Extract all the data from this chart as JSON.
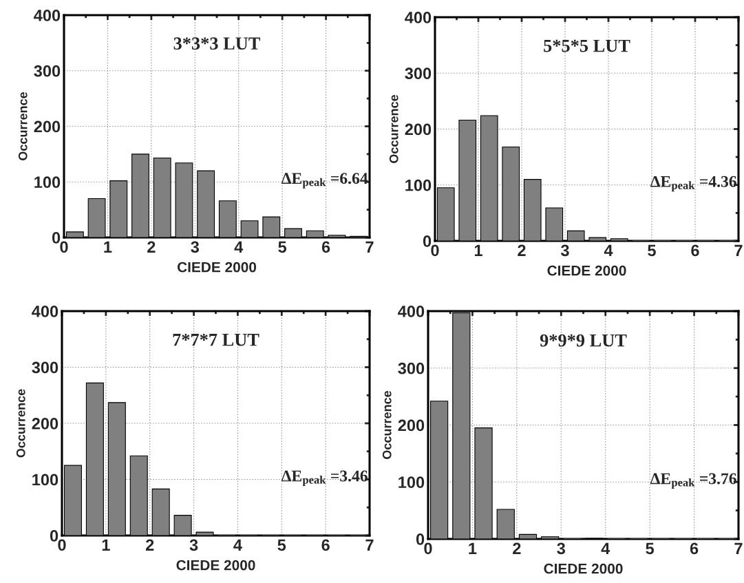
{
  "chart_data": [
    {
      "type": "histogram",
      "title": "3*3*3 LUT",
      "xlabel": "CIEDE 2000",
      "ylabel": "Occurrence",
      "color": "#808080",
      "bins": [
        0,
        0.5,
        1,
        1.5,
        2,
        2.5,
        3,
        3.5,
        4,
        4.5,
        5,
        5.5,
        6,
        6.5,
        7
      ],
      "values": [
        10,
        70,
        102,
        150,
        143,
        134,
        120,
        66,
        30,
        37,
        16,
        12,
        4,
        2
      ],
      "xlim": [
        0,
        7
      ],
      "ylim": [
        0,
        400
      ],
      "xticks": [
        0,
        1,
        2,
        3,
        4,
        5,
        6,
        7
      ],
      "yticks": [
        0,
        100,
        200,
        300,
        400
      ],
      "grid": true,
      "annotations": [
        "ΔE$_{peak}$ =6.64"
      ]
    },
    {
      "type": "histogram",
      "title": "5*5*5 LUT",
      "xlabel": "CIEDE 2000",
      "ylabel": "Occurrence",
      "color": "#808080",
      "bins": [
        0,
        0.5,
        1,
        1.5,
        2,
        2.5,
        3,
        3.5,
        4,
        4.5,
        5,
        5.5,
        6,
        6.5,
        7
      ],
      "values": [
        95,
        216,
        224,
        168,
        110,
        59,
        18,
        6,
        4,
        0,
        0,
        0,
        0,
        0
      ],
      "xlim": [
        0,
        7
      ],
      "ylim": [
        0,
        400
      ],
      "xticks": [
        0,
        1,
        2,
        3,
        4,
        5,
        6,
        7
      ],
      "yticks": [
        0,
        100,
        200,
        300,
        400
      ],
      "grid": true,
      "annotations": [
        "ΔE$_{peak}$ =4.36"
      ]
    },
    {
      "type": "histogram",
      "title": "7*7*7 LUT",
      "xlabel": "CIEDE 2000",
      "ylabel": "Occurrence",
      "color": "#808080",
      "bins": [
        0,
        0.5,
        1,
        1.5,
        2,
        2.5,
        3,
        3.5,
        4,
        4.5,
        5,
        5.5,
        6,
        6.5,
        7
      ],
      "values": [
        125,
        272,
        237,
        142,
        83,
        36,
        6,
        0,
        0,
        0,
        0,
        0,
        0,
        0
      ],
      "xlim": [
        0,
        7
      ],
      "ylim": [
        0,
        400
      ],
      "xticks": [
        0,
        1,
        2,
        3,
        4,
        5,
        6,
        7
      ],
      "yticks": [
        0,
        100,
        200,
        300,
        400
      ],
      "grid": true,
      "annotations": [
        "ΔE$_{peak}$ =3.46"
      ]
    },
    {
      "type": "histogram",
      "title": "9*9*9 LUT",
      "xlabel": "CIEDE 2000",
      "ylabel": "Occurrence",
      "color": "#808080",
      "bins": [
        0,
        0.5,
        1,
        1.5,
        2,
        2.5,
        3,
        3.5,
        4,
        4.5,
        5,
        5.5,
        6,
        6.5,
        7
      ],
      "values": [
        242,
        397,
        195,
        52,
        8,
        4,
        0,
        1,
        0,
        0,
        0,
        0,
        0,
        0
      ],
      "xlim": [
        0,
        7
      ],
      "ylim": [
        0,
        400
      ],
      "xticks": [
        0,
        1,
        2,
        3,
        4,
        5,
        6,
        7
      ],
      "yticks": [
        0,
        100,
        200,
        300,
        400
      ],
      "grid": true,
      "annotations": [
        "ΔE$_{peak}$ =3.76"
      ]
    }
  ]
}
